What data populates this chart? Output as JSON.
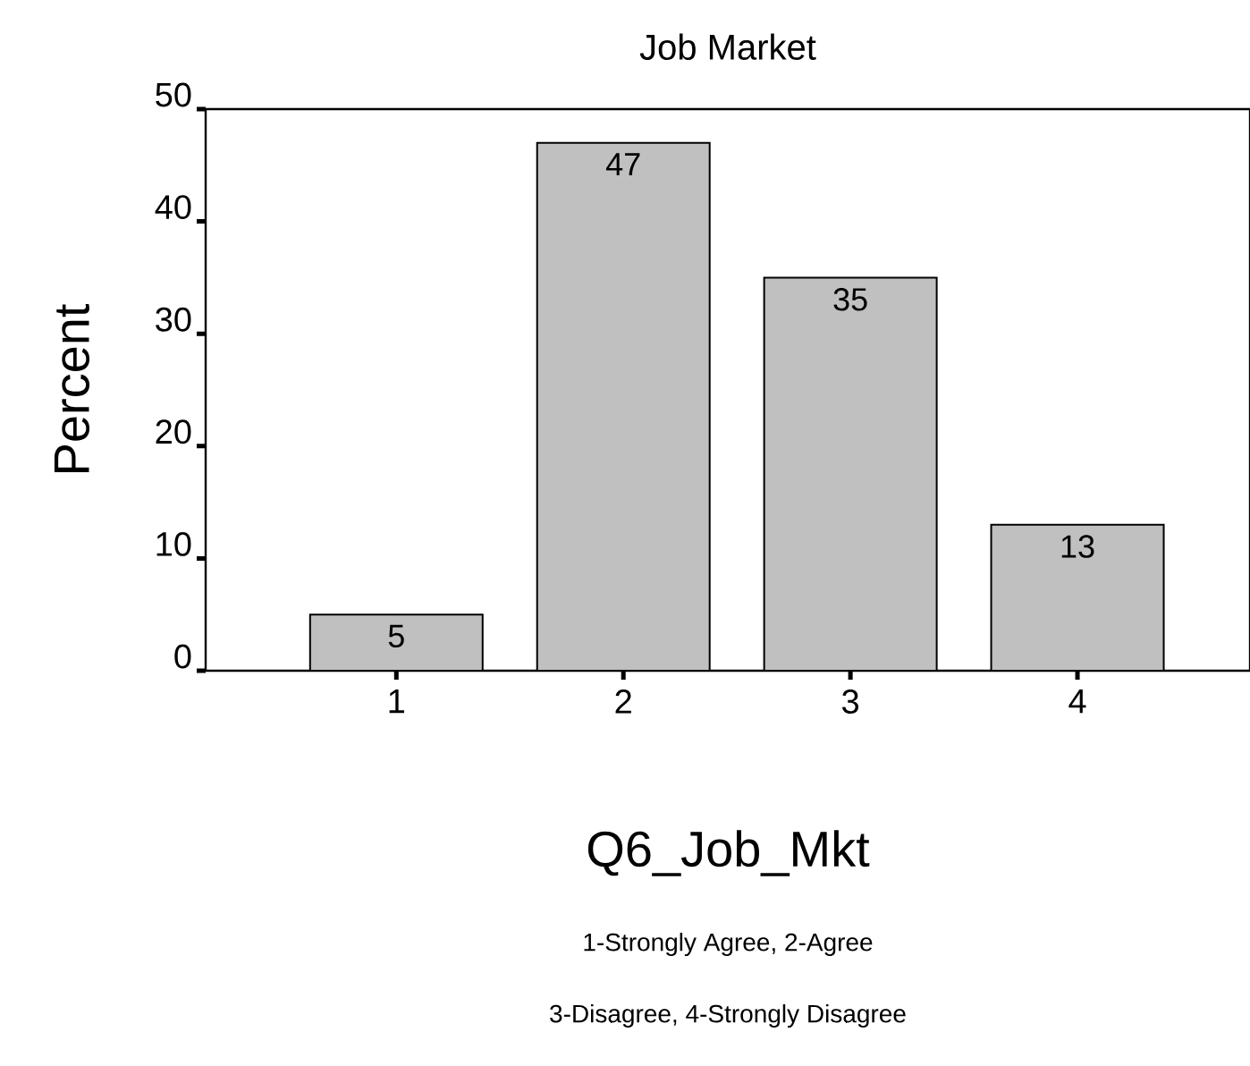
{
  "chart_data": {
    "type": "bar",
    "title": "Job Market",
    "xlabel": "Q6_Job_Mkt",
    "ylabel": "Percent",
    "categories": [
      "1",
      "2",
      "3",
      "4"
    ],
    "values": [
      5,
      47,
      35,
      13
    ],
    "color": "#c0c0c0",
    "ylim": [
      0,
      50
    ],
    "yticks": [
      0,
      10,
      20,
      30,
      40,
      50
    ],
    "grid": false,
    "data_labels": true,
    "annotations": [
      "1-Strongly Agree, 2-Agree",
      "3-Disagree, 4-Strongly Disagree"
    ]
  }
}
